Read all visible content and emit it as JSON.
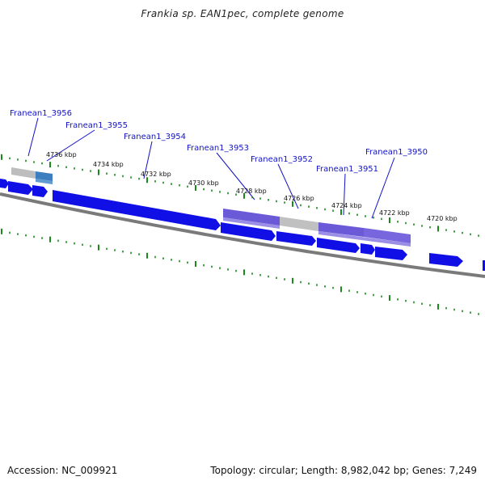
{
  "title": "Frankia sp. EAN1pec, complete genome",
  "footer": {
    "accession": "Accession: NC_009921",
    "summary": "Topology: circular; Length: 8,982,042 bp; Genes: 7,249"
  },
  "genome": {
    "accession": "NC_009921",
    "topology": "circular",
    "length_bp": 8982042,
    "gene_count": 7249
  },
  "kbp_labels": [
    "4736 kbp",
    "4734 kbp",
    "4732 kbp",
    "4730 kbp",
    "4728 kbp",
    "4726 kbp",
    "4724 kbp",
    "4722 kbp",
    "4720 kbp"
  ],
  "gene_labels": [
    "Franean1_3956",
    "Franean1_3955",
    "Franean1_3954",
    "Franean1_3953",
    "Franean1_3952",
    "Franean1_3951",
    "Franean1_3950"
  ],
  "colors": {
    "gene_blue": "#1010e6",
    "gene_highlight": "#6a5ad8",
    "gene_gray": "#bcbcbc",
    "gene_steelblue": "#3c7ec0",
    "backbone": "#7a7a7a",
    "tick_green": "#1a8a1a",
    "label_blue": "#1212c8"
  }
}
